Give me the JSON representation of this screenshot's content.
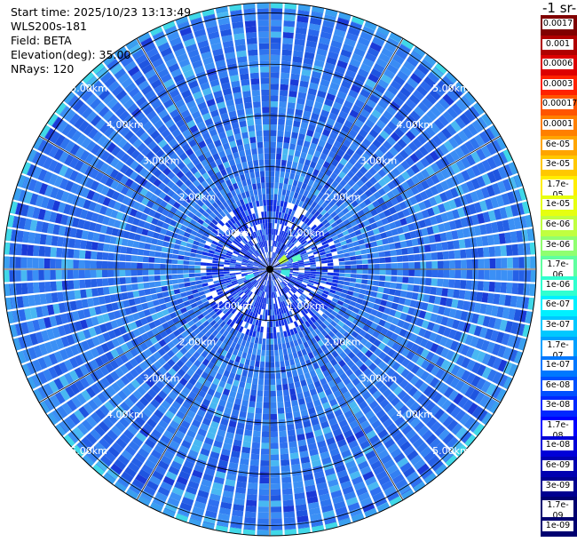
{
  "header": {
    "start_time": "Start time: 2025/10/23 13:13:49",
    "instrument": "WLS200s-181",
    "field": "Field: BETA",
    "elevation": "Elevation(deg): 35.00",
    "nrays": "NRays: 120"
  },
  "colorbar": {
    "unit_text": "-1 sr-",
    "labels": [
      "0.0017",
      "0.001",
      "0.0006",
      "0.0003",
      "0.00017",
      "0.0001",
      "6e-05",
      "3e-05",
      "1.7e-05",
      "1e-05",
      "6e-06",
      "3e-06",
      "1.7e-06",
      "1e-06",
      "6e-07",
      "3e-07",
      "1.7e-07",
      "1e-07",
      "6e-08",
      "3e-08",
      "1.7e-08",
      "1e-08",
      "6e-09",
      "3e-09",
      "1.7e-09",
      "1e-09"
    ],
    "colors": [
      "#800000",
      "#b00000",
      "#dd0000",
      "#ff2200",
      "#ff5500",
      "#ff8000",
      "#ffa500",
      "#ffc800",
      "#ffee00",
      "#e6ff10",
      "#c0ff40",
      "#90ff70",
      "#60ffa0",
      "#30ffd0",
      "#00f0ff",
      "#00c8ff",
      "#00a0ff",
      "#0078ff",
      "#0050ff",
      "#0028ff",
      "#0000ff",
      "#0000d8",
      "#0000b0",
      "#000090",
      "#000070"
    ]
  },
  "chart_data": {
    "type": "heatmap",
    "subtype": "polar-ppi",
    "field": "BETA",
    "nrays": 120,
    "range_rings_km": [
      1,
      2,
      3,
      4,
      5
    ],
    "ring_labels": [
      "1.00km",
      "2.00km",
      "3.00km",
      "4.00km",
      "5.00km"
    ],
    "max_range_km": 5.2,
    "background_level": "1e-07 to 6e-08",
    "grid": true
  }
}
